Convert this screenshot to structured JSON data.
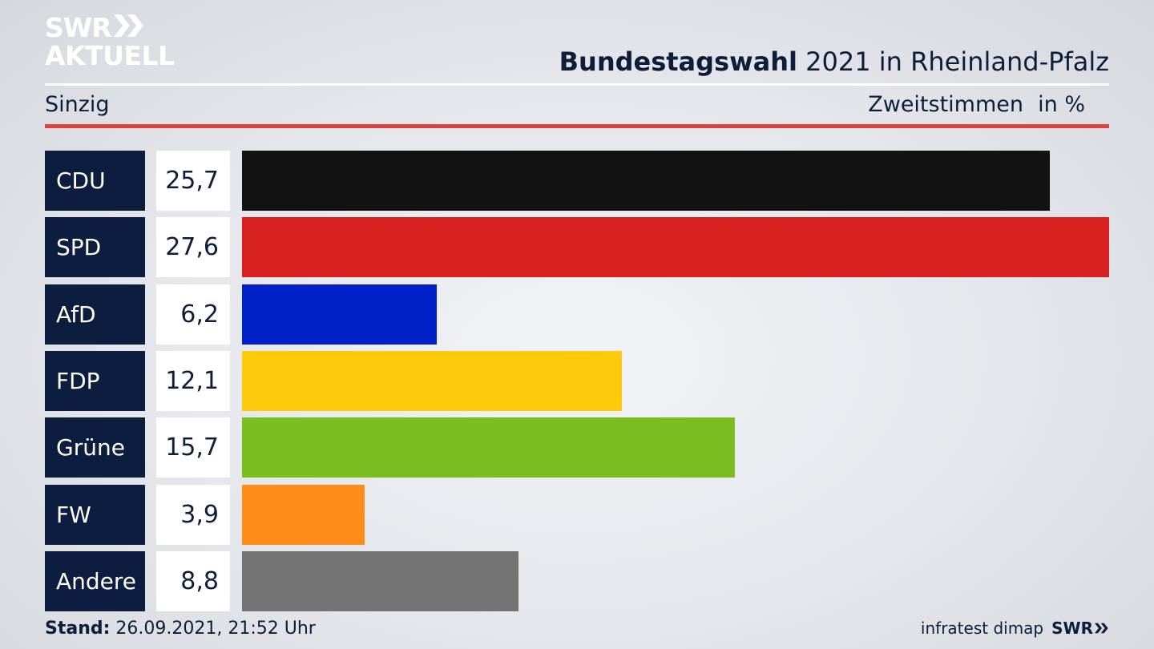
{
  "header": {
    "logo_line1": "SWR",
    "logo_line2": "AKTUELL",
    "title_bold": "Bundestagswahl",
    "title_rest": " 2021 in Rheinland-Pfalz",
    "region": "Sinzig",
    "measure": "Zweitstimmen",
    "unit": "in %"
  },
  "chart_data": {
    "type": "bar",
    "orientation": "horizontal",
    "categories": [
      "CDU",
      "SPD",
      "AfD",
      "FDP",
      "Grüne",
      "FW",
      "Andere"
    ],
    "values": [
      25.7,
      27.6,
      6.2,
      12.1,
      15.7,
      3.9,
      8.8
    ],
    "value_labels": [
      "25,7",
      "27,6",
      "6,2",
      "12,1",
      "15,7",
      "3,9",
      "8,8"
    ],
    "colors": [
      "#121212",
      "#d72020",
      "#0020c8",
      "#fecb0b",
      "#7abd1e",
      "#fe8d19",
      "#737373"
    ],
    "title": "Bundestagswahl 2021 in Rheinland-Pfalz",
    "xlim": [
      0,
      27.6
    ],
    "grid": false,
    "legend": "none"
  },
  "footer": {
    "stand_label": "Stand:",
    "stand_value": " 26.09.2021, 21:52 Uhr",
    "source": "infratest dimap",
    "brand": "SWR"
  }
}
